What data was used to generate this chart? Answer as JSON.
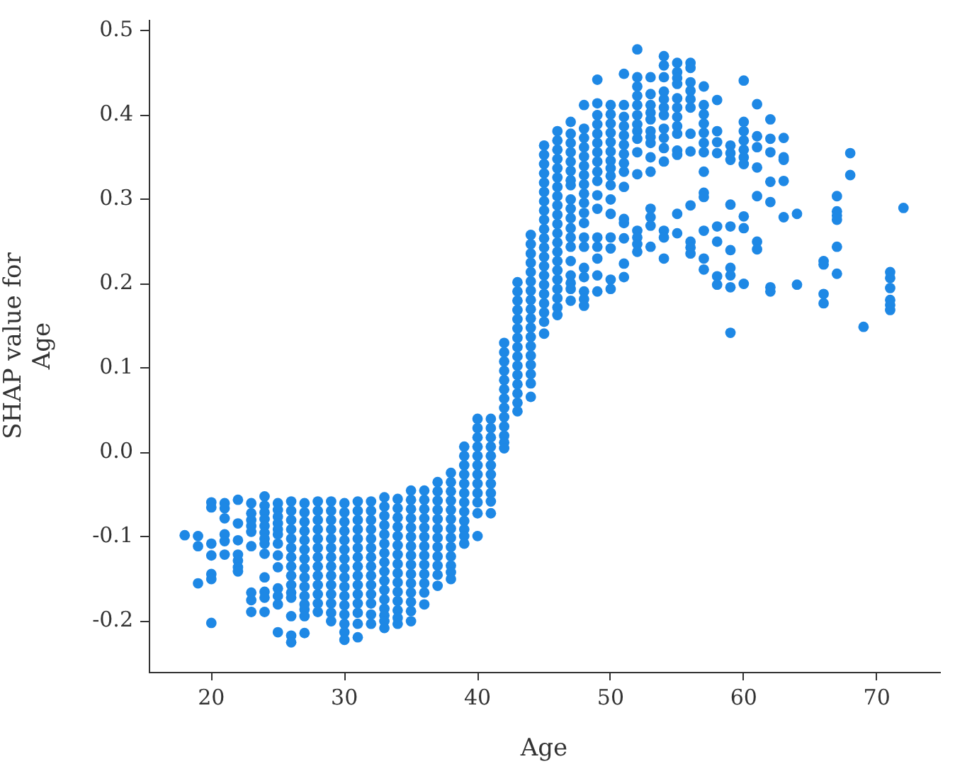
{
  "chart_data": {
    "type": "scatter",
    "xlabel": "Age",
    "ylabel": "SHAP value for\nAge",
    "xlim": [
      15.3,
      74.7
    ],
    "ylim": [
      -0.26,
      0.513
    ],
    "xticks": [
      20,
      30,
      40,
      50,
      60,
      70
    ],
    "yticks": [
      -0.2,
      -0.1,
      {
        "value": 0,
        "label": "0.0"
      },
      0.1,
      0.2,
      0.3,
      0.4,
      0.5
    ],
    "marker": "circle",
    "series": [
      {
        "color": "#1e88e5",
        "x": [
          18,
          19,
          19,
          19,
          20,
          20,
          20,
          20,
          20,
          20,
          20,
          21,
          21,
          21,
          21,
          21,
          21,
          22,
          22,
          22,
          22,
          22,
          22,
          22,
          23,
          23,
          23,
          23,
          23,
          23,
          23,
          23,
          23,
          24,
          24,
          24,
          24,
          24,
          24,
          24,
          24,
          24,
          24,
          24,
          24,
          24,
          25,
          25,
          25,
          25,
          25,
          25,
          25,
          25,
          25,
          25,
          25,
          25,
          25,
          26,
          26,
          26,
          26,
          26,
          26,
          26,
          26,
          26,
          26,
          26,
          26,
          26,
          26,
          26,
          27,
          27,
          27,
          27,
          27,
          27,
          27,
          27,
          27,
          27,
          27,
          27,
          27,
          27,
          27,
          28,
          28,
          28,
          28,
          28,
          28,
          28,
          28,
          28,
          28,
          28,
          28,
          28,
          29,
          29,
          29,
          29,
          29,
          29,
          29,
          29,
          29,
          29,
          29,
          29,
          29,
          29,
          30,
          30,
          30,
          30,
          30,
          30,
          30,
          30,
          30,
          30,
          30,
          30,
          30,
          30,
          30,
          30,
          31,
          31,
          31,
          31,
          31,
          31,
          31,
          31,
          31,
          31,
          31,
          31,
          31,
          31,
          31,
          32,
          32,
          32,
          32,
          32,
          32,
          32,
          32,
          32,
          32,
          32,
          32,
          32,
          32,
          33,
          33,
          33,
          33,
          33,
          33,
          33,
          33,
          33,
          33,
          33,
          33,
          33,
          33,
          33,
          33,
          34,
          34,
          34,
          34,
          34,
          34,
          34,
          34,
          34,
          34,
          34,
          34,
          34,
          34,
          34,
          35,
          35,
          35,
          35,
          35,
          35,
          35,
          35,
          35,
          35,
          35,
          35,
          35,
          35,
          35,
          36,
          36,
          36,
          36,
          36,
          36,
          36,
          36,
          36,
          36,
          36,
          36,
          36,
          37,
          37,
          37,
          37,
          37,
          37,
          37,
          37,
          37,
          37,
          37,
          37,
          38,
          38,
          38,
          38,
          38,
          38,
          38,
          38,
          38,
          38,
          38,
          38,
          38,
          39,
          39,
          39,
          39,
          39,
          39,
          39,
          39,
          39,
          39,
          39,
          39,
          40,
          40,
          40,
          40,
          40,
          40,
          40,
          40,
          40,
          40,
          40,
          40,
          41,
          41,
          41,
          41,
          41,
          41,
          41,
          41,
          41,
          41,
          41,
          42,
          42,
          42,
          42,
          42,
          42,
          42,
          42,
          42,
          42,
          42,
          42,
          42,
          43,
          43,
          43,
          43,
          43,
          43,
          43,
          43,
          43,
          43,
          43,
          43,
          43,
          43,
          43,
          44,
          44,
          44,
          44,
          44,
          44,
          44,
          44,
          44,
          44,
          44,
          44,
          44,
          44,
          44,
          44,
          44,
          44,
          45,
          45,
          45,
          45,
          45,
          45,
          45,
          45,
          45,
          45,
          45,
          45,
          45,
          45,
          45,
          45,
          45,
          45,
          45,
          45,
          45,
          46,
          46,
          46,
          46,
          46,
          46,
          46,
          46,
          46,
          46,
          46,
          46,
          46,
          46,
          46,
          46,
          46,
          46,
          46,
          46,
          46,
          47,
          47,
          47,
          47,
          47,
          47,
          47,
          47,
          47,
          47,
          47,
          47,
          47,
          47,
          47,
          47,
          47,
          47,
          47,
          48,
          48,
          48,
          48,
          48,
          48,
          48,
          48,
          48,
          48,
          48,
          48,
          48,
          48,
          48,
          48,
          48,
          48,
          48,
          49,
          49,
          49,
          49,
          49,
          49,
          49,
          49,
          49,
          49,
          49,
          49,
          49,
          49,
          49,
          49,
          49,
          50,
          50,
          50,
          50,
          50,
          50,
          50,
          50,
          50,
          50,
          50,
          50,
          50,
          50,
          50,
          50,
          51,
          51,
          51,
          51,
          51,
          51,
          51,
          51,
          51,
          51,
          51,
          51,
          51,
          51,
          51,
          52,
          52,
          52,
          52,
          52,
          52,
          52,
          52,
          52,
          52,
          52,
          52,
          52,
          52,
          52,
          53,
          53,
          53,
          53,
          53,
          53,
          53,
          53,
          53,
          53,
          53,
          53,
          53,
          53,
          54,
          54,
          54,
          54,
          54,
          54,
          54,
          54,
          54,
          54,
          54,
          54,
          54,
          54,
          55,
          55,
          55,
          55,
          55,
          55,
          55,
          55,
          55,
          55,
          55,
          55,
          55,
          56,
          56,
          56,
          56,
          56,
          56,
          56,
          56,
          56,
          56,
          56,
          56,
          57,
          57,
          57,
          57,
          57,
          57,
          57,
          57,
          57,
          57,
          57,
          57,
          57,
          58,
          58,
          58,
          58,
          58,
          58,
          58,
          58,
          59,
          59,
          59,
          59,
          59,
          59,
          59,
          59,
          59,
          59,
          60,
          60,
          60,
          60,
          60,
          60,
          60,
          60,
          60,
          60,
          61,
          61,
          61,
          61,
          61,
          61,
          61,
          62,
          62,
          62,
          62,
          62,
          62,
          62,
          63,
          63,
          63,
          63,
          63,
          64,
          64,
          66,
          66,
          66,
          66,
          67,
          67,
          67,
          67,
          67,
          67,
          68,
          68,
          69,
          71,
          71,
          71,
          71,
          71,
          71,
          72
        ],
        "values": [
          -0.098,
          -0.099,
          -0.111,
          -0.155,
          -0.059,
          -0.065,
          -0.108,
          -0.122,
          -0.144,
          -0.15,
          -0.202,
          -0.06,
          -0.066,
          -0.078,
          -0.097,
          -0.105,
          -0.121,
          -0.056,
          -0.084,
          -0.104,
          -0.121,
          -0.128,
          -0.136,
          -0.141,
          -0.06,
          -0.072,
          -0.08,
          -0.087,
          -0.094,
          -0.111,
          -0.166,
          -0.175,
          -0.189,
          -0.052,
          -0.063,
          -0.071,
          -0.079,
          -0.087,
          -0.095,
          -0.102,
          -0.108,
          -0.12,
          -0.148,
          -0.165,
          -0.172,
          -0.189,
          -0.06,
          -0.068,
          -0.076,
          -0.084,
          -0.091,
          -0.097,
          -0.108,
          -0.122,
          -0.136,
          -0.161,
          -0.17,
          -0.18,
          -0.213,
          -0.058,
          -0.069,
          -0.08,
          -0.091,
          -0.102,
          -0.113,
          -0.124,
          -0.135,
          -0.146,
          -0.157,
          -0.166,
          -0.172,
          -0.194,
          -0.217,
          -0.225,
          -0.06,
          -0.071,
          -0.082,
          -0.093,
          -0.104,
          -0.115,
          -0.126,
          -0.137,
          -0.148,
          -0.159,
          -0.17,
          -0.18,
          -0.186,
          -0.194,
          -0.214,
          -0.058,
          -0.069,
          -0.08,
          -0.091,
          -0.102,
          -0.113,
          -0.124,
          -0.135,
          -0.146,
          -0.157,
          -0.168,
          -0.179,
          -0.189,
          -0.058,
          -0.069,
          -0.08,
          -0.091,
          -0.102,
          -0.113,
          -0.124,
          -0.135,
          -0.146,
          -0.157,
          -0.168,
          -0.179,
          -0.19,
          -0.2,
          -0.06,
          -0.071,
          -0.082,
          -0.093,
          -0.104,
          -0.115,
          -0.126,
          -0.137,
          -0.148,
          -0.159,
          -0.17,
          -0.181,
          -0.192,
          -0.203,
          -0.213,
          -0.222,
          -0.058,
          -0.069,
          -0.08,
          -0.091,
          -0.102,
          -0.113,
          -0.124,
          -0.135,
          -0.146,
          -0.157,
          -0.168,
          -0.179,
          -0.19,
          -0.203,
          -0.219,
          -0.058,
          -0.069,
          -0.08,
          -0.091,
          -0.102,
          -0.113,
          -0.124,
          -0.135,
          -0.146,
          -0.157,
          -0.168,
          -0.179,
          -0.192,
          -0.203,
          -0.053,
          -0.064,
          -0.075,
          -0.086,
          -0.097,
          -0.108,
          -0.119,
          -0.13,
          -0.141,
          -0.152,
          -0.163,
          -0.174,
          -0.185,
          -0.193,
          -0.2,
          -0.208,
          -0.055,
          -0.066,
          -0.077,
          -0.088,
          -0.099,
          -0.11,
          -0.121,
          -0.132,
          -0.143,
          -0.154,
          -0.165,
          -0.176,
          -0.187,
          -0.196,
          -0.203,
          -0.045,
          -0.056,
          -0.067,
          -0.078,
          -0.089,
          -0.1,
          -0.111,
          -0.122,
          -0.133,
          -0.144,
          -0.155,
          -0.166,
          -0.177,
          -0.188,
          -0.2,
          -0.045,
          -0.056,
          -0.067,
          -0.078,
          -0.089,
          -0.1,
          -0.111,
          -0.122,
          -0.133,
          -0.144,
          -0.155,
          -0.166,
          -0.18,
          -0.035,
          -0.046,
          -0.057,
          -0.068,
          -0.079,
          -0.09,
          -0.101,
          -0.112,
          -0.123,
          -0.134,
          -0.145,
          -0.158,
          -0.024,
          -0.035,
          -0.046,
          -0.057,
          -0.068,
          -0.079,
          -0.09,
          -0.101,
          -0.112,
          -0.123,
          -0.134,
          -0.142,
          -0.15,
          0.007,
          -0.004,
          -0.015,
          -0.026,
          -0.037,
          -0.048,
          -0.059,
          -0.07,
          -0.081,
          -0.091,
          -0.099,
          -0.108,
          0.04,
          0.029,
          0.018,
          0.007,
          -0.004,
          -0.015,
          -0.026,
          -0.037,
          -0.048,
          -0.059,
          -0.072,
          -0.099,
          0.04,
          0.029,
          0.018,
          0.007,
          -0.004,
          -0.015,
          -0.026,
          -0.037,
          -0.048,
          -0.058,
          -0.072,
          0.13,
          0.119,
          0.108,
          0.097,
          0.086,
          0.075,
          0.064,
          0.053,
          0.042,
          0.031,
          0.02,
          0.012,
          0.005,
          0.202,
          0.191,
          0.18,
          0.169,
          0.158,
          0.147,
          0.136,
          0.125,
          0.114,
          0.103,
          0.092,
          0.081,
          0.07,
          0.059,
          0.049,
          0.258,
          0.247,
          0.236,
          0.225,
          0.214,
          0.203,
          0.192,
          0.181,
          0.17,
          0.159,
          0.148,
          0.137,
          0.126,
          0.115,
          0.104,
          0.093,
          0.082,
          0.066,
          0.364,
          0.353,
          0.342,
          0.331,
          0.32,
          0.309,
          0.298,
          0.287,
          0.276,
          0.265,
          0.254,
          0.243,
          0.232,
          0.221,
          0.21,
          0.199,
          0.188,
          0.177,
          0.166,
          0.155,
          0.141,
          0.381,
          0.37,
          0.359,
          0.348,
          0.337,
          0.326,
          0.315,
          0.304,
          0.293,
          0.282,
          0.271,
          0.26,
          0.249,
          0.238,
          0.227,
          0.216,
          0.205,
          0.194,
          0.183,
          0.172,
          0.163,
          0.392,
          0.378,
          0.367,
          0.356,
          0.345,
          0.334,
          0.323,
          0.317,
          0.3,
          0.289,
          0.278,
          0.266,
          0.255,
          0.244,
          0.227,
          0.21,
          0.201,
          0.194,
          0.18,
          0.412,
          0.384,
          0.373,
          0.362,
          0.351,
          0.34,
          0.329,
          0.318,
          0.307,
          0.296,
          0.284,
          0.272,
          0.255,
          0.244,
          0.219,
          0.208,
          0.191,
          0.182,
          0.174,
          0.442,
          0.414,
          0.4,
          0.389,
          0.378,
          0.367,
          0.356,
          0.345,
          0.333,
          0.322,
          0.305,
          0.289,
          0.255,
          0.244,
          0.23,
          0.21,
          0.191,
          0.412,
          0.401,
          0.39,
          0.379,
          0.368,
          0.357,
          0.346,
          0.337,
          0.328,
          0.317,
          0.3,
          0.283,
          0.255,
          0.242,
          0.205,
          0.194,
          0.449,
          0.412,
          0.398,
          0.387,
          0.376,
          0.365,
          0.354,
          0.343,
          0.333,
          0.315,
          0.277,
          0.272,
          0.254,
          0.224,
          0.208,
          0.478,
          0.445,
          0.434,
          0.423,
          0.412,
          0.4,
          0.389,
          0.381,
          0.372,
          0.356,
          0.33,
          0.263,
          0.255,
          0.247,
          0.238,
          0.445,
          0.425,
          0.412,
          0.403,
          0.395,
          0.381,
          0.374,
          0.367,
          0.35,
          0.333,
          0.289,
          0.279,
          0.269,
          0.244,
          0.47,
          0.459,
          0.445,
          0.428,
          0.419,
          0.409,
          0.4,
          0.384,
          0.373,
          0.361,
          0.345,
          0.263,
          0.255,
          0.23,
          0.462,
          0.451,
          0.444,
          0.437,
          0.42,
          0.409,
          0.398,
          0.387,
          0.378,
          0.358,
          0.353,
          0.283,
          0.26,
          0.462,
          0.456,
          0.439,
          0.429,
          0.419,
          0.409,
          0.378,
          0.357,
          0.293,
          0.25,
          0.243,
          0.236,
          0.434,
          0.412,
          0.401,
          0.39,
          0.379,
          0.367,
          0.356,
          0.333,
          0.308,
          0.303,
          0.263,
          0.23,
          0.217,
          0.418,
          0.381,
          0.368,
          0.355,
          0.268,
          0.25,
          0.209,
          0.199,
          0.364,
          0.355,
          0.347,
          0.294,
          0.268,
          0.24,
          0.219,
          0.21,
          0.196,
          0.142,
          0.441,
          0.392,
          0.381,
          0.37,
          0.359,
          0.35,
          0.342,
          0.28,
          0.266,
          0.2,
          0.413,
          0.375,
          0.362,
          0.338,
          0.304,
          0.25,
          0.241,
          0.395,
          0.372,
          0.356,
          0.321,
          0.297,
          0.196,
          0.191,
          0.373,
          0.35,
          0.347,
          0.322,
          0.279,
          0.283,
          0.199,
          0.227,
          0.223,
          0.188,
          0.177,
          0.304,
          0.286,
          0.281,
          0.276,
          0.244,
          0.212,
          0.355,
          0.329,
          0.149,
          0.214,
          0.207,
          0.195,
          0.181,
          0.175,
          0.169,
          0.29
        ]
      }
    ]
  }
}
